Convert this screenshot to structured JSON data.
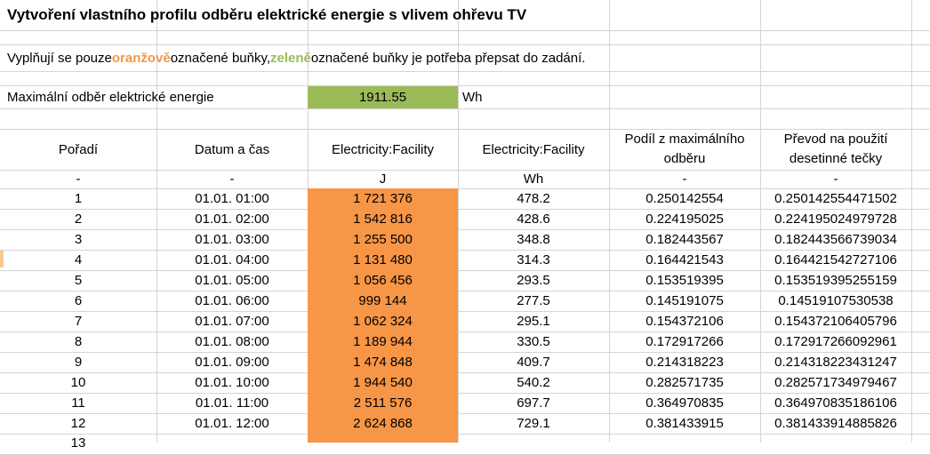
{
  "title": "Vytvoření vlastního profilu odběru elektrické energie s vlivem ohřevu TV",
  "instructions": {
    "part1": "Vyplňují se pouze ",
    "orange_word": "oranžově",
    "part2": " označené buňky, ",
    "green_word": "zeleně",
    "part3": " označené buňky je potřeba přepsat do zadání."
  },
  "max_row": {
    "label": "Maximální odběr elektrické energie",
    "value": "1911.55",
    "unit": "Wh"
  },
  "headers": [
    "Pořadí",
    "Datum a čas",
    "Electricity:Facility",
    "Electricity:Facility",
    "Podíl z maximálního odběru",
    "Převod na použití desetinné tečky"
  ],
  "units": [
    "-",
    "-",
    "J",
    "Wh",
    "-",
    "-"
  ],
  "rows": [
    [
      "1",
      "01.01. 01:00",
      "1 721 376",
      "478.2",
      "0.250142554",
      "0.250142554471502"
    ],
    [
      "2",
      "01.01. 02:00",
      "1 542 816",
      "428.6",
      "0.224195025",
      "0.224195024979728"
    ],
    [
      "3",
      "01.01. 03:00",
      "1 255 500",
      "348.8",
      "0.182443567",
      "0.182443566739034"
    ],
    [
      "4",
      "01.01. 04:00",
      "1 131 480",
      "314.3",
      "0.164421543",
      "0.164421542727106"
    ],
    [
      "5",
      "01.01. 05:00",
      "1 056 456",
      "293.5",
      "0.153519395",
      "0.153519395255159"
    ],
    [
      "6",
      "01.01. 06:00",
      "999 144",
      "277.5",
      "0.145191075",
      "0.14519107530538"
    ],
    [
      "7",
      "01.01. 07:00",
      "1 062 324",
      "295.1",
      "0.154372106",
      "0.154372106405796"
    ],
    [
      "8",
      "01.01. 08:00",
      "1 189 944",
      "330.5",
      "0.172917266",
      "0.172917266092961"
    ],
    [
      "9",
      "01.01. 09:00",
      "1 474 848",
      "409.7",
      "0.214318223",
      "0.214318223431247"
    ],
    [
      "10",
      "01.01. 10:00",
      "1 944 540",
      "540.2",
      "0.282571735",
      "0.282571734979467"
    ],
    [
      "11",
      "01.01. 11:00",
      "2 511 576",
      "697.7",
      "0.364970835",
      "0.364970835186106"
    ],
    [
      "12",
      "01.01. 12:00",
      "2 624 868",
      "729.1",
      "0.381433915",
      "0.381433914885826"
    ]
  ],
  "colors": {
    "orange": "#f79646",
    "green": "#9bbb59",
    "grid": "#d4d4d4"
  }
}
